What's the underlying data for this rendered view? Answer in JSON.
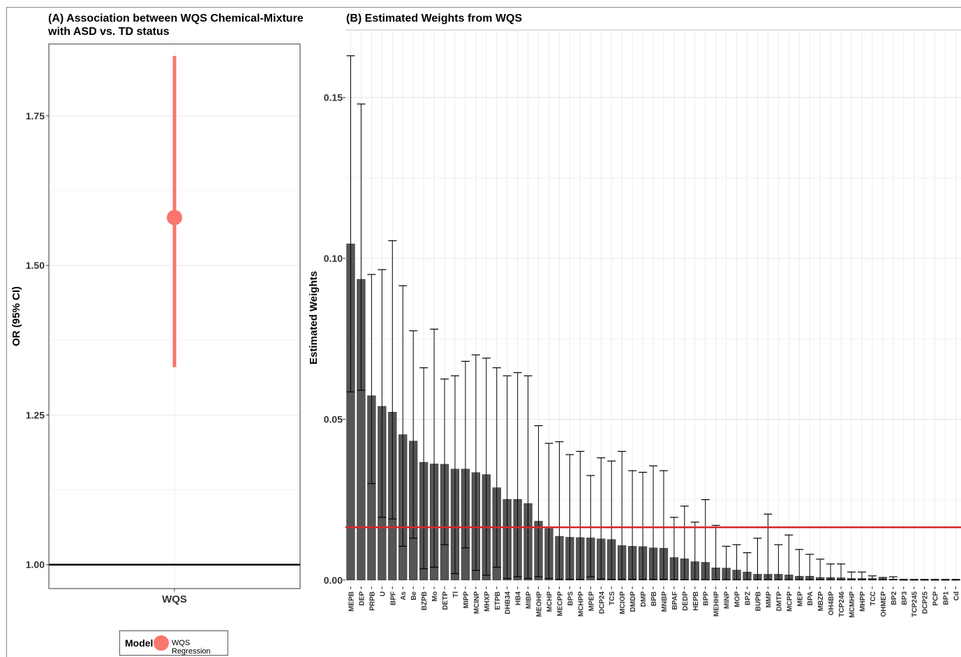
{
  "chart_data": [
    {
      "type": "scatter",
      "title": "(A) Association between WQS Chemical-Mixture with ASD vs. TD status",
      "title_lines": [
        "(A) Association between WQS Chemical-Mixture",
        "with ASD vs. TD status"
      ],
      "ylabel": "OR (95% CI)",
      "xlabel": "",
      "categories": [
        "WQS"
      ],
      "yticks": [
        "1.00",
        "1.25",
        "1.50",
        "1.75"
      ],
      "ylim": [
        0.96,
        1.87
      ],
      "point": {
        "x": "WQS",
        "or": 1.58,
        "lower": 1.33,
        "upper": 1.85
      },
      "reference_line": 1.0,
      "point_color": "#f8766d",
      "legend": {
        "title": "Model",
        "items": [
          "WQS Regression"
        ],
        "position": "bottom"
      }
    },
    {
      "type": "bar",
      "title": "(B) Estimated Weights from WQS",
      "ylabel": "Estimated Weights",
      "xlabel": "",
      "yticks": [
        "0.00",
        "0.05",
        "0.10",
        "0.15"
      ],
      "ylim": [
        -0.002,
        0.171
      ],
      "threshold": 0.0164,
      "threshold_color": "#d62728",
      "bar_color": "#555555",
      "categories": [
        "MEPB",
        "DEP",
        "PRPB",
        "U",
        "BPF",
        "As",
        "Be",
        "BZPB",
        "Mo",
        "DETP",
        "Tl",
        "MIPP",
        "MCINP",
        "MHXP",
        "ETPB",
        "DHB34",
        "HB4",
        "MIBP",
        "MEOHP",
        "MCHP",
        "MECPP",
        "BPS",
        "MCHPP",
        "MPEP",
        "DCP24",
        "TCS",
        "MCIOP",
        "DMDP",
        "DMP",
        "BPB",
        "MNBP",
        "BPAF",
        "DEDP",
        "HEPB",
        "BPP",
        "MEHHP",
        "MINP",
        "MOP",
        "BPZ",
        "BUPB",
        "MMP",
        "DMTP",
        "MCPP",
        "MEP",
        "BPA",
        "MBZP",
        "OH4BP",
        "TCP246",
        "MCMHP",
        "MHPP",
        "TCC",
        "OHMEP",
        "BP2",
        "BP3",
        "TCP245",
        "DCP25",
        "PCP",
        "BP1",
        "Cd"
      ],
      "values": [
        0.1045,
        0.0935,
        0.0573,
        0.054,
        0.0522,
        0.0452,
        0.0432,
        0.0366,
        0.0361,
        0.036,
        0.0345,
        0.0345,
        0.0334,
        0.0328,
        0.0287,
        0.0251,
        0.0251,
        0.0238,
        0.0183,
        0.016,
        0.0136,
        0.0133,
        0.0132,
        0.0131,
        0.0128,
        0.0126,
        0.0107,
        0.0105,
        0.0104,
        0.01,
        0.0099,
        0.007,
        0.0066,
        0.0057,
        0.0055,
        0.0038,
        0.0037,
        0.0031,
        0.0025,
        0.0018,
        0.0018,
        0.0018,
        0.0016,
        0.0012,
        0.0012,
        0.0008,
        0.0008,
        0.0007,
        0.0005,
        0.0005,
        0.0005,
        0.0005,
        0.0003,
        0.0001,
        0.0001,
        0.0001,
        0.0001,
        0.0001,
        0.0001
      ],
      "lower": [
        0.0585,
        0.059,
        0.03,
        0.0195,
        0.019,
        0.0105,
        0.013,
        0.0035,
        0.004,
        0.011,
        0.002,
        0.01,
        0.003,
        0.0015,
        0.004,
        0.0005,
        0.001,
        0.0005,
        0.001,
        0.0005,
        0.0002,
        0.0002,
        0.0002,
        0.001,
        0.0003,
        0.0002,
        0.0002,
        0.0002,
        0.0002,
        0.0002,
        0.0002,
        0.0001,
        0.0001,
        0.0001,
        0.0001,
        0.0001,
        0.0001,
        0.0001,
        0.0001,
        0.0001,
        0.0001,
        0.0001,
        0.0001,
        0.0001,
        0.0001,
        0.0001,
        0.0001,
        0.0001,
        0.0001,
        0.0001,
        0.0001,
        0.0001,
        0.0001,
        0.0,
        0.0,
        0.0,
        0.0,
        0.0,
        0.0
      ],
      "upper": [
        0.163,
        0.148,
        0.095,
        0.0965,
        0.1055,
        0.0915,
        0.0775,
        0.066,
        0.078,
        0.0625,
        0.0635,
        0.068,
        0.07,
        0.069,
        0.066,
        0.0635,
        0.0645,
        0.0635,
        0.048,
        0.0425,
        0.043,
        0.039,
        0.04,
        0.0325,
        0.038,
        0.037,
        0.04,
        0.034,
        0.0335,
        0.0355,
        0.034,
        0.0195,
        0.023,
        0.018,
        0.025,
        0.017,
        0.0105,
        0.011,
        0.0085,
        0.013,
        0.0205,
        0.011,
        0.014,
        0.0095,
        0.008,
        0.0065,
        0.005,
        0.005,
        0.0025,
        0.0025,
        0.0013,
        0.0008,
        0.001,
        0.0002,
        0.0002,
        0.0002,
        0.0002,
        0.0002,
        0.0002
      ]
    }
  ]
}
